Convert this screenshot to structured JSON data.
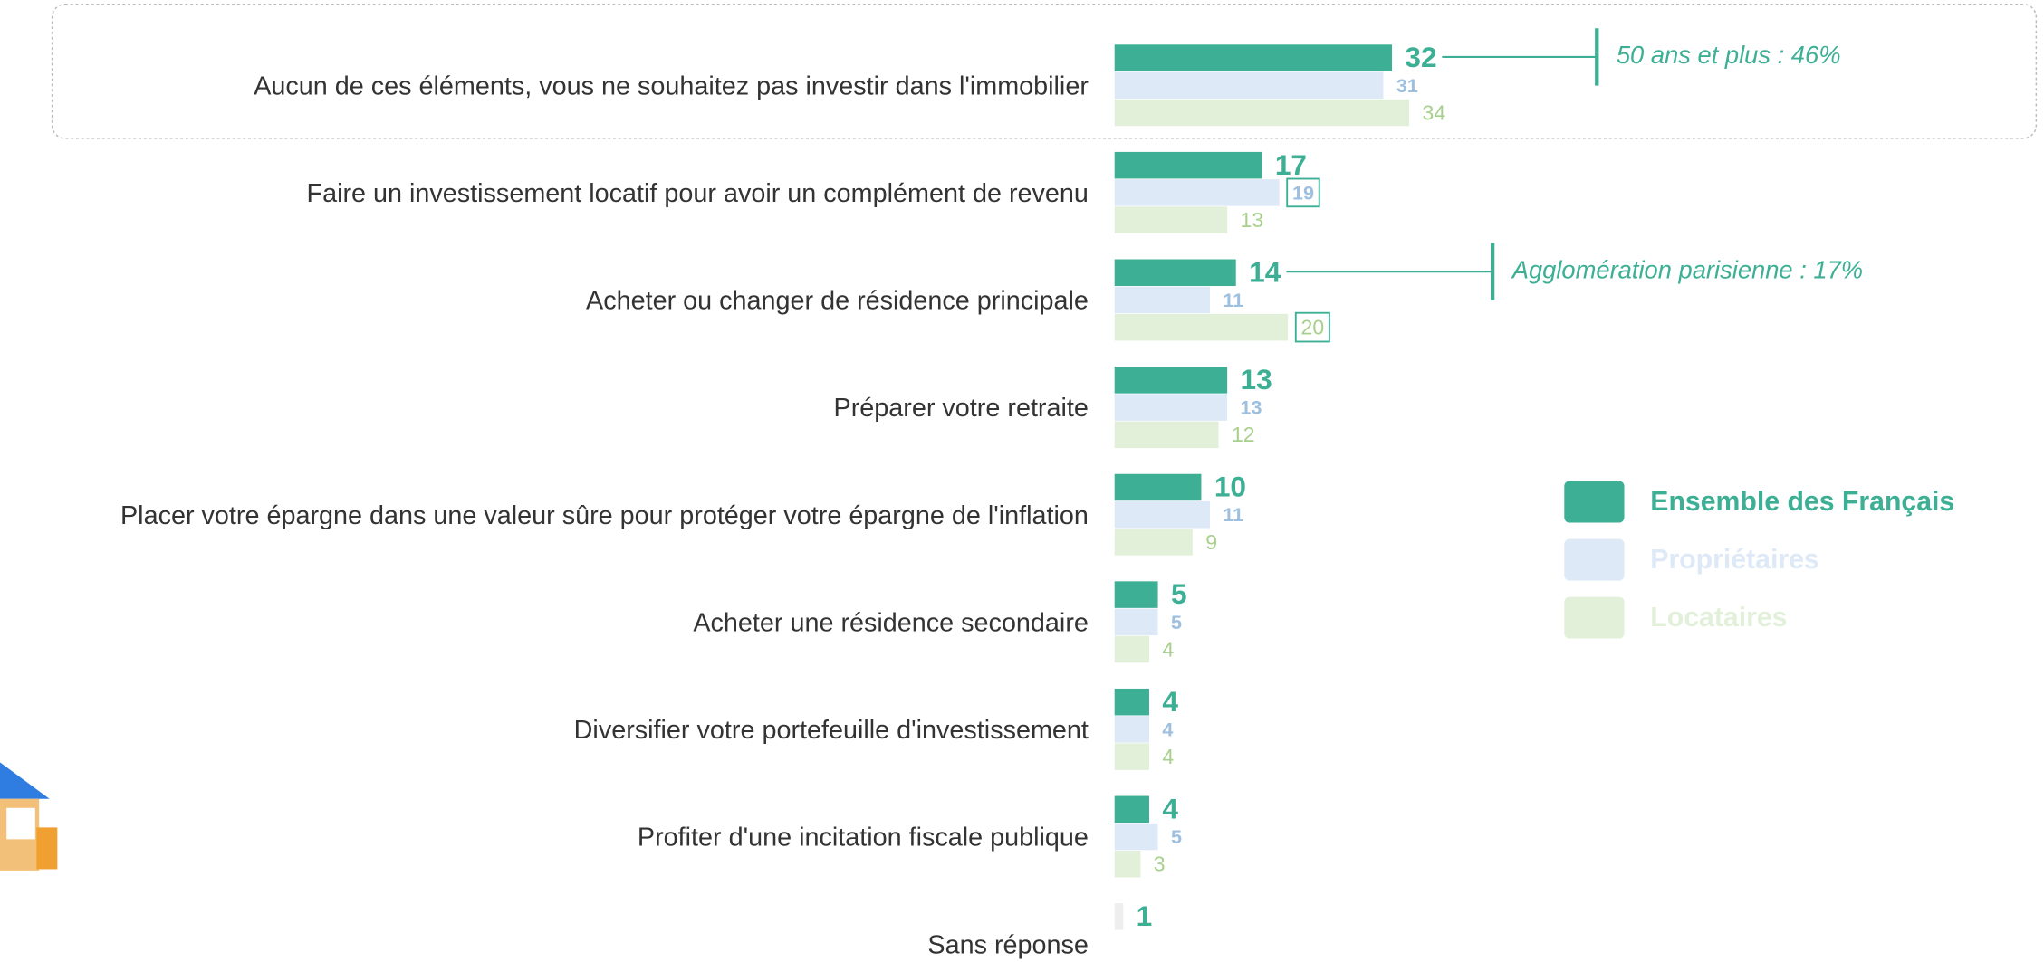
{
  "chart_data": {
    "type": "bar",
    "orientation": "horizontal",
    "categories": [
      "Aucun de ces éléments, vous ne souhaitez pas investir dans l'immobilier",
      "Faire un investissement locatif pour avoir un complément de revenu",
      "Acheter ou changer de résidence principale",
      "Préparer votre retraite",
      "Placer votre épargne dans une valeur sûre pour protéger votre épargne de l'inflation",
      "Acheter une résidence secondaire",
      "Diversifier votre portefeuille d'investissement",
      "Profiter d'une incitation fiscale publique",
      "Sans réponse"
    ],
    "series": [
      {
        "name": "Ensemble des Français",
        "color": "#3daf94",
        "values": [
          32,
          17,
          14,
          13,
          10,
          5,
          4,
          4,
          1
        ]
      },
      {
        "name": "Propriétaires",
        "color": "#dde9f6",
        "values": [
          31,
          19,
          11,
          13,
          11,
          5,
          4,
          5,
          null
        ]
      },
      {
        "name": "Locataires",
        "color": "#e2f0da",
        "values": [
          34,
          13,
          20,
          12,
          9,
          4,
          4,
          3,
          null
        ]
      }
    ],
    "annotations": [
      "50 ans et plus : 46%",
      "Agglomération parisienne : 17%"
    ]
  }
}
